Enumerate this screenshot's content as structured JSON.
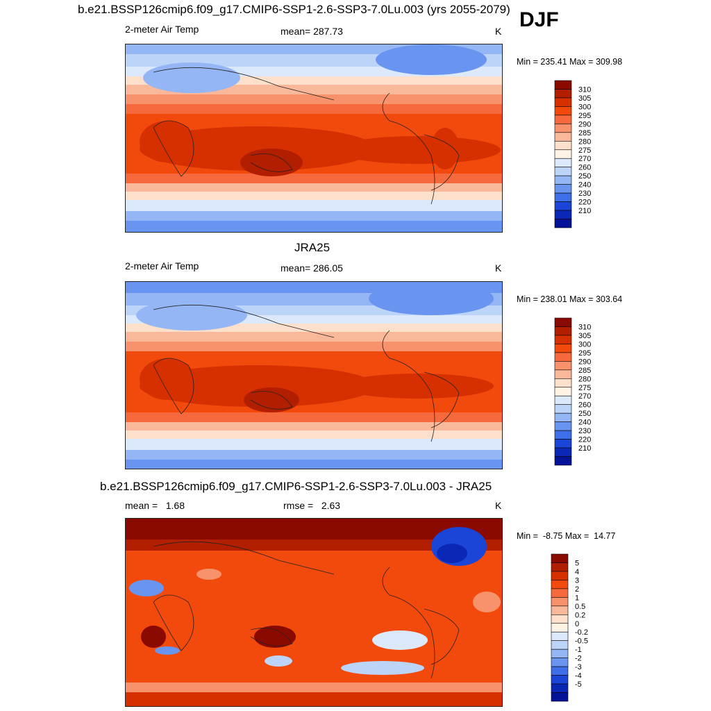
{
  "header": {
    "title": "b.e21.BSSP126cmip6.f09_g17.CMIP6-SSP1-2.6-SSP3-7.0Lu.003 (yrs 2055-2079)",
    "season": "DJF"
  },
  "panels": [
    {
      "id": "model",
      "left_label": "2-meter Air Temp",
      "center_label": "mean= 287.73",
      "units": "K",
      "minmax": "Min = 235.41 Max = 309.98",
      "colorbar": {
        "levels": [
          "310",
          "305",
          "300",
          "295",
          "290",
          "285",
          "280",
          "275",
          "270",
          "260",
          "250",
          "240",
          "230",
          "220",
          "210"
        ],
        "colors": [
          "#8b0a00",
          "#b21e00",
          "#d63000",
          "#f24a0c",
          "#f5693c",
          "#f7926c",
          "#fab89a",
          "#fde0cc",
          "#fff3e6",
          "#dce8fb",
          "#bcd4f7",
          "#94b6f4",
          "#6994ef",
          "#3e6fe8",
          "#1a45d6",
          "#0a27b6",
          "#031296"
        ]
      }
    },
    {
      "id": "obs",
      "title": "JRA25",
      "left_label": "2-meter Air Temp",
      "center_label": "mean= 286.05",
      "units": "K",
      "minmax": "Min = 238.01 Max = 303.64",
      "colorbar": {
        "levels": [
          "310",
          "305",
          "300",
          "295",
          "290",
          "285",
          "280",
          "275",
          "270",
          "260",
          "250",
          "240",
          "230",
          "220",
          "210"
        ],
        "colors": [
          "#8b0a00",
          "#b21e00",
          "#d63000",
          "#f24a0c",
          "#f5693c",
          "#f7926c",
          "#fab89a",
          "#fde0cc",
          "#fff3e6",
          "#dce8fb",
          "#bcd4f7",
          "#94b6f4",
          "#6994ef",
          "#3e6fe8",
          "#1a45d6",
          "#0a27b6",
          "#031296"
        ]
      }
    },
    {
      "id": "diff",
      "title": "b.e21.BSSP126cmip6.f09_g17.CMIP6-SSP1-2.6-SSP3-7.0Lu.003 - JRA25",
      "left_label": "mean =   1.68",
      "center_label": "rmse =   2.63",
      "units": "K",
      "minmax": "Min =  -8.75 Max =  14.77",
      "colorbar": {
        "levels": [
          "5",
          "4",
          "3",
          "2",
          "1",
          "0.5",
          "0.2",
          "0",
          "-0.2",
          "-0.5",
          "-1",
          "-2",
          "-3",
          "-4",
          "-5"
        ],
        "colors": [
          "#8b0a00",
          "#b21e00",
          "#d63000",
          "#f24a0c",
          "#f5693c",
          "#f7926c",
          "#fab89a",
          "#fde0cc",
          "#fff3e6",
          "#dce8fb",
          "#bcd4f7",
          "#94b6f4",
          "#6994ef",
          "#3e6fe8",
          "#1a45d6",
          "#0a27b6",
          "#031296"
        ]
      }
    }
  ],
  "chart_data": [
    {
      "type": "heatmap",
      "title": "b.e21.BSSP126cmip6.f09_g17.CMIP6-SSP1-2.6-SSP3-7.0Lu.003 (yrs 2055-2079)",
      "variable": "2-meter Air Temp",
      "units": "K",
      "season": "DJF",
      "mean": 287.73,
      "min": 235.41,
      "max": 309.98,
      "contour_levels": [
        210,
        220,
        230,
        240,
        250,
        260,
        270,
        275,
        280,
        285,
        290,
        295,
        300,
        305,
        310
      ],
      "grid": "global lat-lon map"
    },
    {
      "type": "heatmap",
      "title": "JRA25",
      "variable": "2-meter Air Temp",
      "units": "K",
      "season": "DJF",
      "mean": 286.05,
      "min": 238.01,
      "max": 303.64,
      "contour_levels": [
        210,
        220,
        230,
        240,
        250,
        260,
        270,
        275,
        280,
        285,
        290,
        295,
        300,
        305,
        310
      ],
      "grid": "global lat-lon map"
    },
    {
      "type": "heatmap",
      "title": "b.e21.BSSP126cmip6.f09_g17.CMIP6-SSP1-2.6-SSP3-7.0Lu.003 - JRA25",
      "units": "K",
      "mean": 1.68,
      "rmse": 2.63,
      "min": -8.75,
      "max": 14.77,
      "contour_levels": [
        -5,
        -4,
        -3,
        -2,
        -1,
        -0.5,
        -0.2,
        0,
        0.2,
        0.5,
        1,
        2,
        3,
        4,
        5
      ],
      "grid": "global lat-lon map"
    }
  ]
}
